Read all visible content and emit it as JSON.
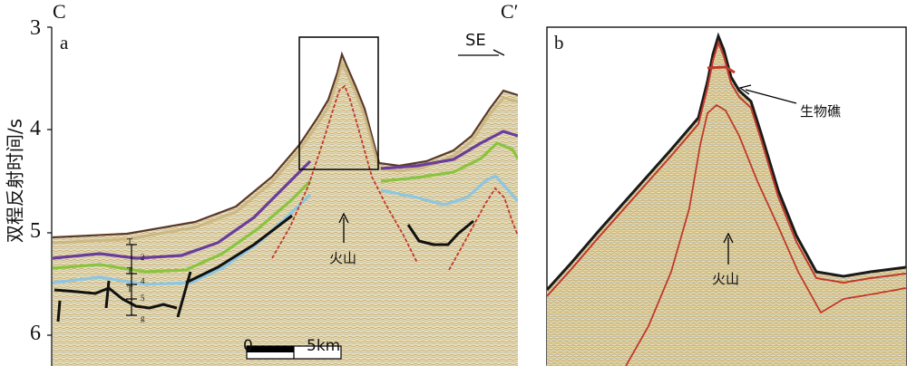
{
  "axis": {
    "ylabel": "双程反射时间/s",
    "ticks": [
      "3",
      "4",
      "5",
      "6"
    ]
  },
  "panel_a": {
    "label": "a",
    "left_label": "C",
    "right_label": "C′",
    "direction": "SE",
    "volcano_label": "火山",
    "horizon_labels": [
      "T",
      "2",
      "T",
      "4",
      "T",
      "5",
      "g"
    ],
    "scale": {
      "start": "0",
      "end": "5km"
    }
  },
  "panel_b": {
    "label": "b",
    "reef_label": "生物礁",
    "volcano_label": "火山"
  },
  "colors": {
    "seismic_base": "#e8ddb0",
    "horizon_purple": "#6a3d9a",
    "horizon_green": "#8ac43f",
    "horizon_blue": "#8ec6e0",
    "fault_black": "#111111",
    "volcano_outline": "#c0392b"
  }
}
